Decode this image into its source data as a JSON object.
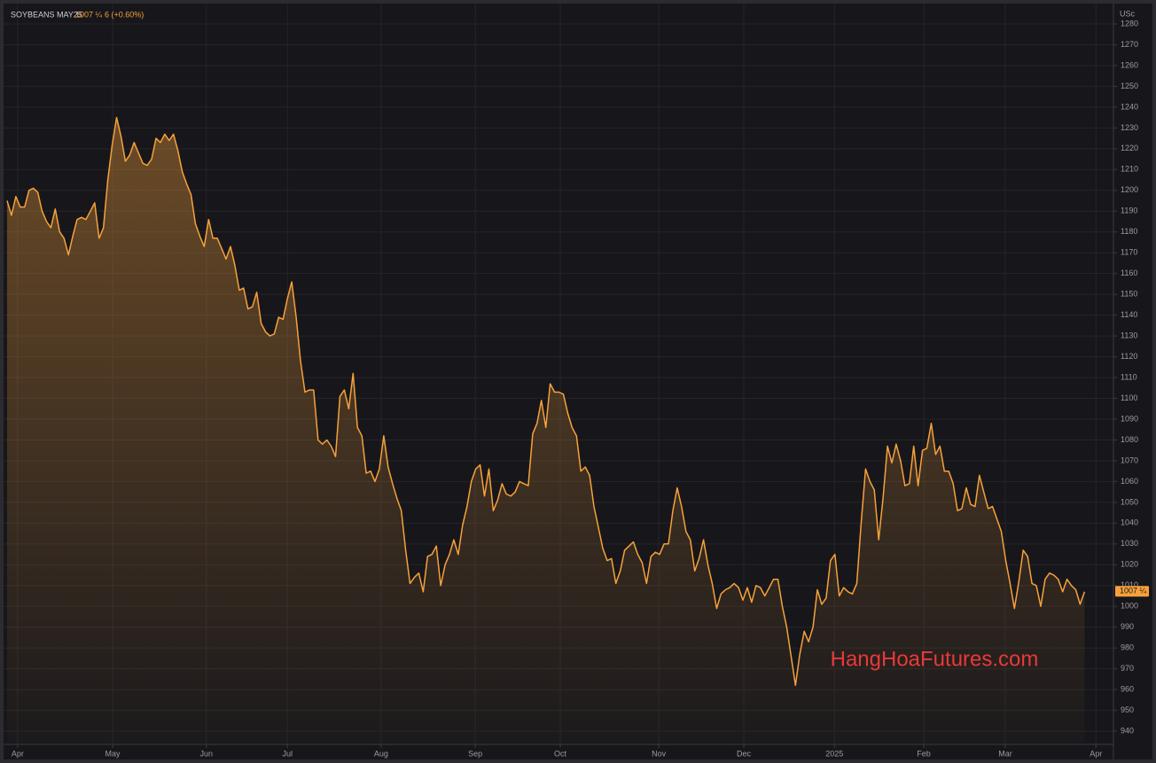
{
  "chart_data": {
    "type": "line",
    "unit": "USc",
    "change": "6 (+0.60%)",
    "last_price": {
      "value": 1007.25,
      "label": "1007 ¼"
    },
    "watermark": "HangHoaFutures.com",
    "series": [
      {
        "name": "SOYBEANS MAY25",
        "color": "#f7a13b",
        "values": [
          1195,
          1188,
          1197,
          1192,
          1192,
          1200,
          1201,
          1199,
          1190,
          1185,
          1182,
          1191,
          1180,
          1177,
          1169,
          1178,
          1186,
          1187,
          1186,
          1190,
          1194,
          1177,
          1182,
          1205,
          1222,
          1235,
          1226,
          1214,
          1217,
          1223,
          1218,
          1213,
          1212,
          1215,
          1225,
          1223,
          1227,
          1224,
          1227,
          1219,
          1209,
          1203,
          1198,
          1184,
          1178,
          1173,
          1186,
          1177,
          1177,
          1172,
          1167,
          1173,
          1164,
          1152,
          1153,
          1143,
          1144,
          1151,
          1136,
          1132,
          1130,
          1131,
          1139,
          1138,
          1148,
          1156,
          1139,
          1118,
          1103,
          1104,
          1104,
          1080,
          1078,
          1080,
          1077,
          1072,
          1101,
          1104,
          1095,
          1112,
          1086,
          1082,
          1064,
          1065,
          1060,
          1066,
          1082,
          1067,
          1059,
          1052,
          1046,
          1027,
          1011,
          1014,
          1016,
          1007,
          1024,
          1025,
          1029,
          1010,
          1020,
          1025,
          1032,
          1025,
          1039,
          1048,
          1060,
          1066,
          1068,
          1053,
          1066,
          1046,
          1051,
          1059,
          1054,
          1053,
          1055,
          1060,
          1059,
          1058,
          1083,
          1088,
          1099,
          1086,
          1107,
          1103,
          1103,
          1102,
          1093,
          1086,
          1082,
          1065,
          1067,
          1063,
          1048,
          1038,
          1028,
          1022,
          1023,
          1011,
          1017,
          1027,
          1029,
          1031,
          1025,
          1021,
          1011,
          1024,
          1026,
          1025,
          1030,
          1030,
          1046,
          1057,
          1048,
          1036,
          1032,
          1017,
          1023,
          1032,
          1020,
          1011,
          999,
          1006,
          1008,
          1009,
          1011,
          1009,
          1003,
          1009,
          1002,
          1010,
          1009,
          1005,
          1009,
          1013,
          1013,
          1000,
          990,
          976,
          962,
          977,
          988,
          983,
          990,
          1008,
          1001,
          1004,
          1022,
          1025,
          1005,
          1009,
          1007,
          1006,
          1011,
          1040,
          1066,
          1060,
          1056,
          1032,
          1052,
          1077,
          1069,
          1078,
          1070,
          1058,
          1059,
          1077,
          1058,
          1075,
          1076,
          1088,
          1073,
          1077,
          1065,
          1065,
          1059,
          1046,
          1047,
          1057,
          1049,
          1048,
          1063,
          1055,
          1047,
          1048,
          1042,
          1036,
          1022,
          1011,
          999,
          1012,
          1027,
          1024,
          1011,
          1010,
          1000,
          1013,
          1016,
          1015,
          1013,
          1007,
          1013,
          1010,
          1008,
          1001,
          1007
        ]
      }
    ],
    "xlim": [
      0,
      252.4
    ],
    "xticks": [
      {
        "value": 2.4,
        "label": "Apr"
      },
      {
        "value": 24.1,
        "label": "May"
      },
      {
        "value": 45.5,
        "label": "Jun"
      },
      {
        "value": 64,
        "label": "Jul"
      },
      {
        "value": 85.4,
        "label": "Aug"
      },
      {
        "value": 106.9,
        "label": "Sep"
      },
      {
        "value": 126.3,
        "label": "Oct"
      },
      {
        "value": 148.8,
        "label": "Nov"
      },
      {
        "value": 168.2,
        "label": "Dec"
      },
      {
        "value": 188.9,
        "label": "2025"
      },
      {
        "value": 209.3,
        "label": "Feb"
      },
      {
        "value": 227.9,
        "label": "Mar"
      },
      {
        "value": 248.6,
        "label": "Apr"
      }
    ],
    "ylim": [
      934.5,
      1288.1
    ],
    "yticks": [
      940,
      950,
      960,
      970,
      980,
      990,
      1000,
      1010,
      1020,
      1030,
      1040,
      1050,
      1060,
      1070,
      1080,
      1090,
      1100,
      1110,
      1120,
      1130,
      1140,
      1150,
      1160,
      1170,
      1180,
      1190,
      1200,
      1210,
      1220,
      1230,
      1240,
      1250,
      1260,
      1270,
      1280
    ],
    "grid": true
  }
}
